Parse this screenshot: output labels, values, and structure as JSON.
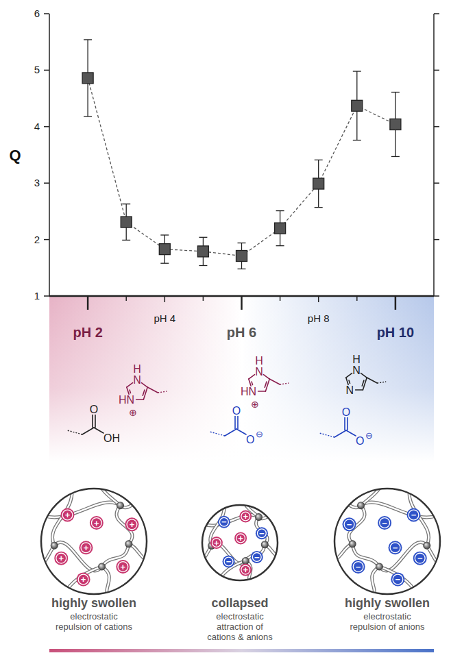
{
  "chart_data": {
    "type": "line",
    "y_label": "Q",
    "x": [
      2,
      3,
      4,
      5,
      6,
      7,
      8,
      9,
      10
    ],
    "series": [
      {
        "values": [
          4.86,
          2.31,
          1.83,
          1.79,
          1.71,
          2.2,
          2.99,
          4.37,
          4.04
        ],
        "errors": [
          0.68,
          0.32,
          0.25,
          0.25,
          0.23,
          0.31,
          0.42,
          0.61,
          0.57
        ],
        "color": "#555555",
        "marker": "square",
        "line_style": "dashed"
      }
    ],
    "xlim": [
      1,
      11
    ],
    "ylim": [
      1,
      6
    ],
    "yticks": [
      1,
      2,
      3,
      4,
      5,
      6
    ],
    "xticks": [
      {
        "value": 2,
        "label": "pH 2"
      },
      {
        "value": 4,
        "label": "pH 4"
      },
      {
        "value": 6,
        "label": "pH 6"
      },
      {
        "value": 8,
        "label": "pH 8"
      },
      {
        "value": 10,
        "label": "pH 10"
      }
    ],
    "grid": false
  },
  "diagram": {
    "cation_symbol": "+",
    "anion_symbol": "−",
    "states": [
      {
        "ring": {
          "color": "#8a1f4f",
          "h": "H",
          "n_top": "N",
          "n_bottom": "HN",
          "charge": "⊕"
        },
        "acid": {
          "color": "#222222",
          "o_top": "O",
          "o_side": "OH"
        },
        "caption": "highly swollen",
        "detail": [
          "electrostatic",
          "repulsion of cations"
        ]
      },
      {
        "ring": {
          "color": "#8a1f4f",
          "h": "H",
          "n_top": "N",
          "n_bottom": "HN",
          "charge": "⊕"
        },
        "acid": {
          "color": "#1f3fbf",
          "o_top": "O",
          "o_side": "O",
          "charge": "⊖"
        },
        "caption": "collapsed",
        "detail": [
          "electrostatic",
          "attraction of",
          "cations & anions"
        ]
      },
      {
        "ring": {
          "color": "#222222",
          "h": "H",
          "n_top": "N",
          "n_bottom": "N"
        },
        "acid": {
          "color": "#1f3fbf",
          "o_top": "O",
          "o_side": "O",
          "charge": "⊖"
        },
        "caption": "highly swollen",
        "detail": [
          "electrostatic",
          "repulsion of anions"
        ]
      }
    ]
  }
}
